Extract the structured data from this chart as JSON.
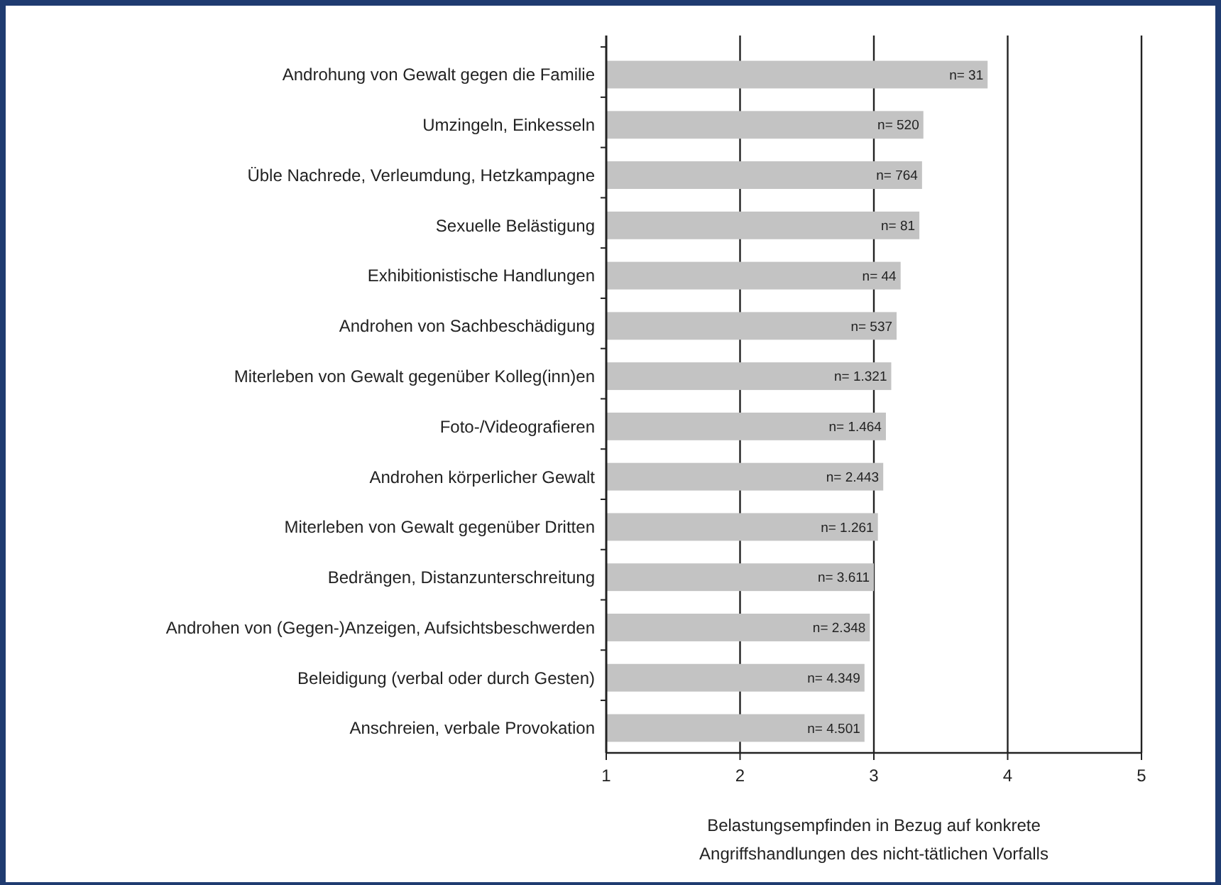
{
  "chart_data": {
    "type": "bar",
    "orientation": "horizontal",
    "categories": [
      "Androhung von Gewalt gegen die Familie",
      "Umzingeln, Einkesseln",
      "Üble Nachrede, Verleumdung, Hetzkampagne",
      "Sexuelle Belästigung",
      "Exhibitionistische Handlungen",
      "Androhen von Sachbeschädigung",
      "Miterleben von Gewalt gegenüber Kolleg(inn)en",
      "Foto-/Videografieren",
      "Androhen körperlicher Gewalt",
      "Miterleben von Gewalt gegenüber Dritten",
      "Bedrängen, Distanzunterschreitung",
      "Androhen von (Gegen-)Anzeigen, Aufsichtsbeschwerden",
      "Beleidigung (verbal oder durch Gesten)",
      "Anschreien, verbale Provokation"
    ],
    "values": [
      3.85,
      3.37,
      3.36,
      3.34,
      3.2,
      3.17,
      3.13,
      3.09,
      3.07,
      3.03,
      3.0,
      2.97,
      2.93,
      2.93
    ],
    "annotations": [
      {
        "text": "n= 31",
        "x": 3.85,
        "y": "Androhung von Gewalt gegen die Familie"
      },
      {
        "text": "n= 520",
        "x": 3.37,
        "y": "Umzingeln, Einkesseln"
      },
      {
        "text": "n= 764",
        "x": 3.36,
        "y": "Üble Nachrede, Verleumdung, Hetzkampagne"
      },
      {
        "text": "n= 81",
        "x": 3.34,
        "y": "Sexuelle Belästigung"
      },
      {
        "text": "n= 44",
        "x": 3.2,
        "y": "Exhibitionistische Handlungen"
      },
      {
        "text": "n= 537",
        "x": 3.17,
        "y": "Androhen von Sachbeschädigung"
      },
      {
        "text": "n= 1.321",
        "x": 3.13,
        "y": "Miterleben von Gewalt gegenüber Kolleg(inn)en"
      },
      {
        "text": "n= 1.464",
        "x": 3.09,
        "y": "Foto-/Videografieren"
      },
      {
        "text": "n= 2.443",
        "x": 3.07,
        "y": "Androhen körperlicher Gewalt"
      },
      {
        "text": "n= 1.261",
        "x": 3.03,
        "y": "Miterleben von Gewalt gegenüber Dritten"
      },
      {
        "text": "n= 3.611",
        "x": 3.0,
        "y": "Bedrängen, Distanzunterschreitung"
      },
      {
        "text": "n= 2.348",
        "x": 2.97,
        "y": "Androhen von (Gegen-)Anzeigen, Aufsichtsbeschwerden"
      },
      {
        "text": "n= 4.349",
        "x": 2.93,
        "y": "Beleidigung (verbal oder durch Gesten)"
      },
      {
        "text": "n= 4.501",
        "x": 2.93,
        "y": "Anschreien, verbale Provokation"
      }
    ],
    "color": "#c3c3c3",
    "xlim": [
      1,
      5
    ],
    "xticks": [
      1,
      2,
      3,
      4,
      5
    ],
    "grid": "x",
    "xlabel": "Belastungsempfinden in Bezug auf konkrete\nAngriffshandlungen des nicht-tätlichen Vorfalls"
  }
}
